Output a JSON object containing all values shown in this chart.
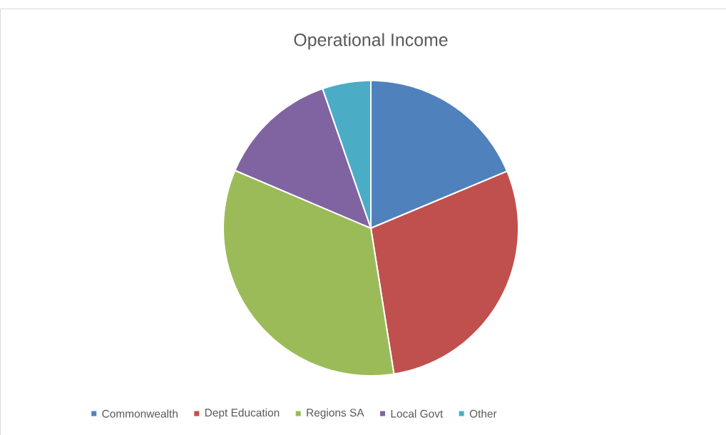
{
  "chart_data": {
    "type": "pie",
    "title": "Operational Income",
    "categories": [
      "Commonwealth",
      "Dept Education",
      "Regions SA",
      "Local Govt",
      "Other"
    ],
    "values": [
      18.7,
      28.8,
      33.9,
      13.3,
      5.3
    ],
    "colors": [
      "#4f81bd",
      "#c0504d",
      "#9bbb59",
      "#8064a2",
      "#4bacc6"
    ],
    "legend": "bottom"
  }
}
